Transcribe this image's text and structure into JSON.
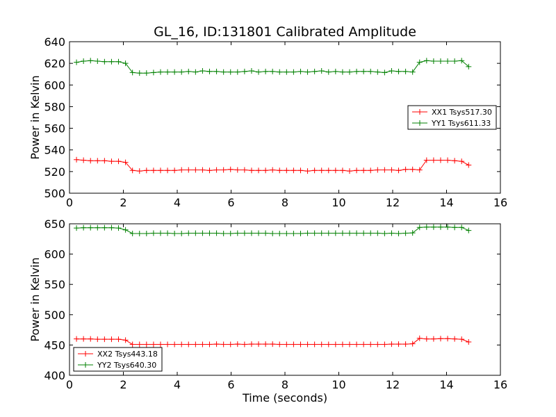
{
  "figure": {
    "title": "GL_16, ID:131801 Calibrated Amplitude"
  },
  "colors": {
    "series1": "#ff0000",
    "series2": "#008000",
    "frame": "#000000"
  },
  "chart_data": [
    {
      "type": "line",
      "title": "GL_16, ID:131801 Calibrated Amplitude",
      "xlabel": "",
      "ylabel": "Power in Kelvin",
      "xlim": [
        0,
        16
      ],
      "ylim": [
        500,
        640
      ],
      "xticks": [
        0,
        2,
        4,
        6,
        8,
        10,
        12,
        14,
        16
      ],
      "yticks": [
        500,
        520,
        540,
        560,
        580,
        600,
        620,
        640
      ],
      "legend_position": "center-right",
      "x": [
        0.26,
        0.52,
        0.78,
        1.04,
        1.3,
        1.56,
        1.82,
        2.08,
        2.34,
        2.6,
        2.86,
        3.12,
        3.38,
        3.64,
        3.9,
        4.16,
        4.42,
        4.68,
        4.94,
        5.2,
        5.46,
        5.72,
        5.98,
        6.24,
        6.5,
        6.76,
        7.02,
        7.28,
        7.54,
        7.8,
        8.06,
        8.32,
        8.58,
        8.84,
        9.1,
        9.36,
        9.62,
        9.88,
        10.14,
        10.4,
        10.66,
        10.92,
        11.18,
        11.44,
        11.7,
        11.96,
        12.22,
        12.48,
        12.74,
        13.0,
        13.26,
        13.52,
        13.78,
        14.04,
        14.3,
        14.56,
        14.82
      ],
      "series": [
        {
          "name": "XX1 Tsys517.30",
          "color": "#ff0000",
          "values": [
            531,
            530.5,
            530,
            530,
            530,
            529.5,
            529.5,
            528.5,
            521,
            520.5,
            521,
            521,
            521,
            521,
            521,
            521.5,
            521.5,
            521.5,
            521.5,
            521,
            521.5,
            521.5,
            522,
            521.5,
            521.5,
            521,
            521,
            521,
            521.5,
            521,
            521,
            521,
            521,
            520.5,
            521,
            521,
            521,
            521,
            521,
            520.5,
            521,
            521,
            521,
            521.5,
            521.5,
            521.5,
            521,
            522,
            522,
            521.5,
            530.5,
            530.5,
            530.5,
            530.5,
            530,
            529.5,
            526
          ]
        },
        {
          "name": "YY1 Tsys611.33",
          "color": "#008000",
          "values": [
            621,
            622,
            622.5,
            622,
            621.5,
            621.5,
            621.5,
            620,
            611.5,
            611,
            611,
            611.5,
            612,
            612,
            612,
            612,
            612.5,
            612,
            613,
            612.5,
            612.5,
            612,
            612,
            612,
            612.5,
            613,
            612,
            612.5,
            612.5,
            612,
            612,
            612,
            612.5,
            612,
            612.5,
            613,
            612,
            612.5,
            612,
            612,
            612.5,
            612.5,
            612.5,
            612,
            611.5,
            613,
            612.5,
            612.5,
            612,
            621,
            622.5,
            622,
            622,
            622,
            622,
            622.5,
            617
          ]
        }
      ]
    },
    {
      "type": "line",
      "title": "",
      "xlabel": "Time (seconds)",
      "ylabel": "Power in Kelvin",
      "xlim": [
        0,
        16
      ],
      "ylim": [
        400,
        650
      ],
      "xticks": [
        0,
        2,
        4,
        6,
        8,
        10,
        12,
        14,
        16
      ],
      "yticks": [
        400,
        450,
        500,
        550,
        600,
        650
      ],
      "legend_position": "lower-left",
      "x": [
        0.26,
        0.52,
        0.78,
        1.04,
        1.3,
        1.56,
        1.82,
        2.08,
        2.34,
        2.6,
        2.86,
        3.12,
        3.38,
        3.64,
        3.9,
        4.16,
        4.42,
        4.68,
        4.94,
        5.2,
        5.46,
        5.72,
        5.98,
        6.24,
        6.5,
        6.76,
        7.02,
        7.28,
        7.54,
        7.8,
        8.06,
        8.32,
        8.58,
        8.84,
        9.1,
        9.36,
        9.62,
        9.88,
        10.14,
        10.4,
        10.66,
        10.92,
        11.18,
        11.44,
        11.7,
        11.96,
        12.22,
        12.48,
        12.74,
        13.0,
        13.26,
        13.52,
        13.78,
        14.04,
        14.3,
        14.56,
        14.82
      ],
      "series": [
        {
          "name": "XX2 Tsys443.18",
          "color": "#ff0000",
          "values": [
            460,
            460,
            460,
            459.5,
            459.5,
            459.5,
            459.5,
            458,
            451,
            451,
            451,
            451,
            451,
            451,
            451,
            451,
            451,
            451,
            451,
            451,
            451.5,
            451,
            451,
            451.5,
            451,
            451.5,
            451.5,
            451.5,
            451.5,
            451,
            451,
            451,
            451,
            451,
            451,
            451,
            451,
            451,
            451,
            451,
            451,
            451,
            451,
            451,
            451,
            451.5,
            451.5,
            451.5,
            452,
            461,
            460,
            460,
            460.5,
            460.5,
            460,
            459.5,
            455
          ]
        },
        {
          "name": "YY2 Tsys640.30",
          "color": "#008000",
          "values": [
            643,
            643.5,
            643.5,
            643.5,
            643.5,
            643.5,
            643,
            640,
            634,
            634,
            634,
            634.5,
            634.5,
            634.5,
            634,
            634,
            634.5,
            634.5,
            634.5,
            634.5,
            634.5,
            634,
            634,
            634.5,
            634.5,
            634.5,
            634.5,
            634.5,
            634,
            634,
            634,
            634,
            634,
            634.5,
            634.5,
            634.5,
            634.5,
            634.5,
            634.5,
            634.5,
            634.5,
            634.5,
            634.5,
            634.5,
            634,
            634.5,
            634,
            634.5,
            635,
            644,
            644.5,
            644.5,
            644.5,
            644.5,
            644,
            644,
            639
          ]
        }
      ]
    }
  ]
}
